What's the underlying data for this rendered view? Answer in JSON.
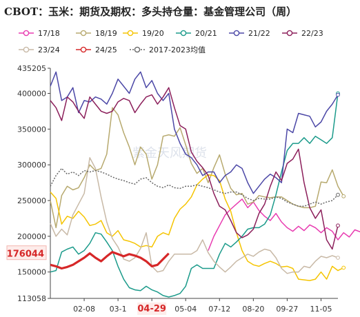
{
  "chart_data": {
    "type": "line",
    "title": "CBOT：玉米：期货及期权：多头持仓量：基金管理公司（周）",
    "watermark": "紫金天风期货",
    "x_ticks": [
      "02-08",
      "03-1",
      "04-29",
      "05-04",
      "07-12",
      "08-20",
      "09-27",
      "11-05"
    ],
    "x_highlight_tick": "04-29",
    "y_ticks": [
      113058,
      150000,
      200000,
      250000,
      300000,
      350000,
      400000,
      435205
    ],
    "ylim": [
      113058,
      435205
    ],
    "highlight_value": 176044,
    "highlight_label": "176044",
    "legend_position": "top",
    "series": [
      {
        "name": "17/18",
        "color": "#e83ab0",
        "dashed": false,
        "width": 1.5,
        "marker": true,
        "x_start": 28,
        "values": [
          180000,
          200000,
          215000,
          230000,
          238000,
          245000,
          252000,
          240000,
          248000,
          236000,
          228000,
          222000,
          232000,
          220000,
          212000,
          207000,
          214000,
          208000,
          216000,
          212000,
          205000,
          212000,
          207000,
          195000,
          205000,
          199000,
          209000,
          206000,
          235000,
          225000,
          208000,
          207000,
          210000
        ]
      },
      {
        "name": "18/19",
        "color": "#b7a96e",
        "dashed": false,
        "width": 1.5,
        "marker": true,
        "x_start": 0,
        "values": [
          250000,
          212000,
          257000,
          270000,
          265000,
          268000,
          282000,
          300000,
          292000,
          295000,
          315000,
          380000,
          370000,
          345000,
          325000,
          300000,
          325000,
          315000,
          280000,
          300000,
          340000,
          342000,
          340000,
          352000,
          328000,
          302000,
          288000,
          295000,
          275000,
          296000,
          314000,
          287000,
          267000,
          258000,
          260000,
          245000,
          248000,
          257000,
          255000,
          254000,
          255000,
          255000,
          250000,
          245000,
          242000,
          240000,
          240000,
          242000,
          276000,
          275000,
          293000,
          270000,
          256000
        ]
      },
      {
        "name": "19/20",
        "color": "#f5c400",
        "dashed": false,
        "width": 1.5,
        "marker": true,
        "x_start": 0,
        "values": [
          262000,
          253000,
          217000,
          228000,
          225000,
          235000,
          227000,
          215000,
          217000,
          222000,
          205000,
          200000,
          208000,
          195000,
          193000,
          190000,
          185000,
          187000,
          185000,
          200000,
          205000,
          202000,
          225000,
          238000,
          245000,
          255000,
          272000,
          280000,
          286000,
          285000,
          278000,
          252000,
          235000,
          205000,
          180000,
          165000,
          160000,
          158000,
          162000,
          165000,
          162000,
          157000,
          158000,
          155000,
          140000,
          139000,
          138000,
          140000,
          150000,
          140000,
          158000,
          152000,
          156000
        ]
      },
      {
        "name": "20/21",
        "color": "#1a9a8a",
        "dashed": false,
        "width": 1.5,
        "marker": true,
        "x_start": 0,
        "values": [
          150000,
          152000,
          178000,
          182000,
          185000,
          175000,
          180000,
          190000,
          205000,
          203000,
          192000,
          180000,
          158000,
          140000,
          128000,
          125000,
          124000,
          130000,
          125000,
          122000,
          117000,
          115000,
          117000,
          120000,
          130000,
          155000,
          160000,
          155000,
          155000,
          155000,
          175000,
          190000,
          185000,
          192000,
          200000,
          210000,
          212000,
          212000,
          217000,
          230000,
          258000,
          290000,
          320000,
          330000,
          330000,
          338000,
          330000,
          340000,
          335000,
          330000,
          338000,
          400000
        ]
      },
      {
        "name": "21/22",
        "color": "#4b47a6",
        "dashed": false,
        "width": 1.5,
        "marker": true,
        "x_start": 0,
        "values": [
          410000,
          430000,
          390000,
          395000,
          408000,
          373000,
          390000,
          388000,
          395000,
          392000,
          385000,
          400000,
          420000,
          410000,
          400000,
          420000,
          430000,
          408000,
          418000,
          400000,
          390000,
          400000,
          350000,
          330000,
          315000,
          310000,
          300000,
          285000,
          290000,
          290000,
          275000,
          285000,
          290000,
          300000,
          295000,
          275000,
          260000,
          270000,
          280000,
          287000,
          282000,
          275000,
          350000,
          345000,
          372000,
          370000,
          368000,
          353000,
          360000,
          375000,
          385000,
          398000
        ]
      },
      {
        "name": "22/23",
        "color": "#8b1e5a",
        "dashed": false,
        "width": 1.5,
        "marker": true,
        "x_start": 0,
        "values": [
          390000,
          380000,
          362000,
          395000,
          388000,
          375000,
          365000,
          395000,
          385000,
          375000,
          372000,
          375000,
          388000,
          393000,
          390000,
          373000,
          385000,
          395000,
          398000,
          385000,
          395000,
          408000,
          380000,
          355000,
          350000,
          318000,
          305000,
          296000,
          285000,
          260000,
          242000,
          237000,
          222000,
          205000,
          198000,
          202000,
          210000,
          232000,
          245000,
          270000,
          290000,
          278000,
          302000,
          308000,
          322000,
          275000,
          240000,
          225000,
          237000,
          195000,
          182000,
          215000
        ]
      },
      {
        "name": "23/24",
        "color": "#c8b9a6",
        "dashed": false,
        "width": 1.5,
        "marker": true,
        "x_start": 0,
        "values": [
          218000,
          200000,
          210000,
          202000,
          230000,
          245000,
          260000,
          310000,
          295000,
          255000,
          220000,
          197000,
          185000,
          168000,
          165000,
          170000,
          183000,
          205000,
          158000,
          150000,
          152000,
          165000,
          175000,
          175000,
          175000,
          175000,
          180000,
          195000,
          177000,
          165000,
          157000,
          150000,
          157000,
          165000,
          170000,
          175000,
          172000,
          178000,
          182000,
          180000,
          170000,
          155000,
          148000,
          150000,
          150000,
          158000,
          156000,
          165000,
          172000,
          170000,
          173000,
          170000
        ]
      },
      {
        "name": "24/25",
        "color": "#d62728",
        "dashed": false,
        "width": 3.2,
        "marker": false,
        "x_start": 0,
        "values": [
          160000,
          158000,
          155000,
          157000,
          160000,
          165000,
          170000,
          176000,
          170000,
          165000,
          172000,
          178000,
          175000,
          172000,
          175000,
          173000,
          170000,
          165000,
          158000,
          160000,
          168000,
          176044
        ]
      },
      {
        "name": "2017-2023均值",
        "color": "#666666",
        "dashed": true,
        "width": 1.5,
        "marker": true,
        "x_start": 0,
        "values": [
          270000,
          285000,
          295000,
          287000,
          290000,
          285000,
          292000,
          290000,
          292000,
          290000,
          287000,
          283000,
          280000,
          278000,
          275000,
          273000,
          280000,
          282000,
          275000,
          270000,
          268000,
          272000,
          268000,
          267000,
          270000,
          270000,
          272000,
          270000,
          268000,
          265000,
          262000,
          260000,
          262000,
          262000,
          258000,
          253000,
          250000,
          253000,
          252000,
          252000,
          255000,
          253000,
          248000,
          245000,
          242000,
          242000,
          245000,
          248000,
          245000,
          248000,
          250000,
          258000
        ]
      }
    ]
  }
}
